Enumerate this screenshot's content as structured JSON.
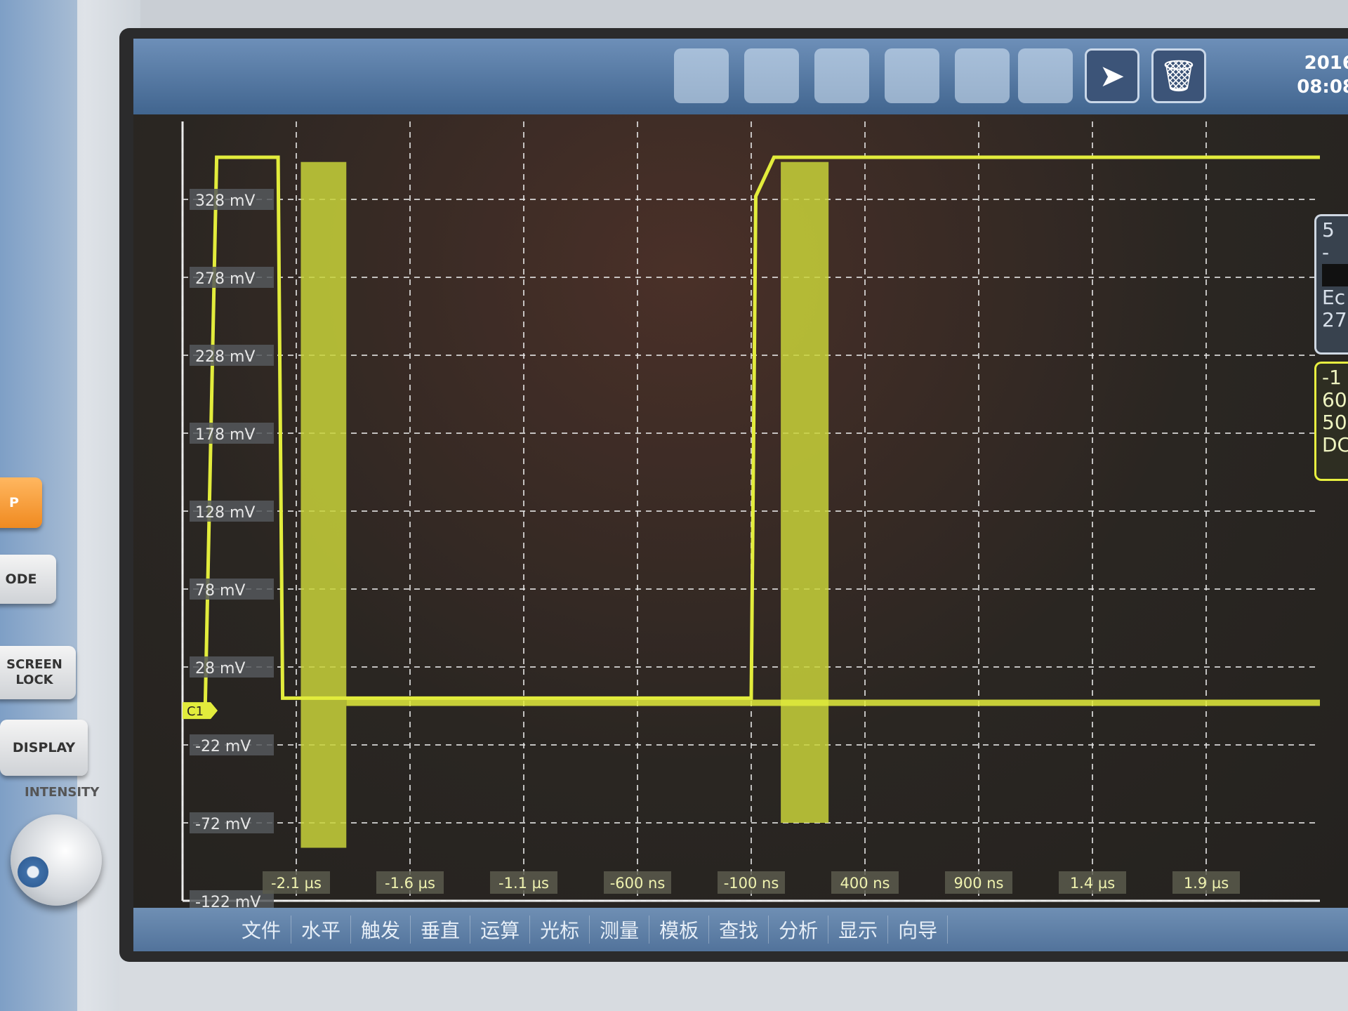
{
  "left_panel": {
    "buttons": [
      {
        "label": "P",
        "style": "orange"
      },
      {
        "label": "ODE"
      },
      {
        "label": "SCREEN LOCK"
      },
      {
        "label": "DISPLAY"
      }
    ],
    "intensity_label": "INTENSITY"
  },
  "toolbar": {
    "pointer_icon": "cursor-arrow-icon",
    "delete_icon": "trash-icon",
    "date": "2016",
    "time": "08:08"
  },
  "right_panels": {
    "top": [
      "5",
      "-",
      "",
      "Ec",
      "27"
    ],
    "channel": [
      "-1",
      "60",
      "50",
      "DC"
    ]
  },
  "menu": [
    "文件",
    "水平",
    "触发",
    "垂直",
    "运算",
    "光标",
    "测量",
    "模板",
    "查找",
    "分析",
    "显示",
    "向导"
  ],
  "colors": {
    "trace": "#e2ec3c",
    "grid": "#e8e8e8",
    "screen": "#2a2622",
    "toolbar": "#41658f"
  },
  "chart_data": {
    "type": "line",
    "title": "",
    "xlabel": "",
    "ylabel": "",
    "xlim": [
      -2.6,
      2.4
    ],
    "ylim": [
      -122,
      378
    ],
    "grid": true,
    "channel_marker": "C1",
    "x_ticks": [
      {
        "value": -2.1,
        "label": "-2.1 µs"
      },
      {
        "value": -1.6,
        "label": "-1.6 µs"
      },
      {
        "value": -1.1,
        "label": "-1.1 µs"
      },
      {
        "value": -0.6,
        "label": "-600 ns"
      },
      {
        "value": -0.1,
        "label": "-100 ns"
      },
      {
        "value": 0.4,
        "label": "400 ns"
      },
      {
        "value": 0.9,
        "label": "900 ns"
      },
      {
        "value": 1.4,
        "label": "1.4 µs"
      },
      {
        "value": 1.9,
        "label": "1.9 µs"
      }
    ],
    "y_ticks": [
      {
        "value": 328,
        "label": "328 mV"
      },
      {
        "value": 278,
        "label": "278 mV"
      },
      {
        "value": 228,
        "label": "228 mV"
      },
      {
        "value": 178,
        "label": "178 mV"
      },
      {
        "value": 128,
        "label": "128 mV"
      },
      {
        "value": 78,
        "label": "78 mV"
      },
      {
        "value": 28,
        "label": "28 mV"
      },
      {
        "value": -22,
        "label": "-22 mV"
      },
      {
        "value": -72,
        "label": "-72 mV"
      },
      {
        "value": -122,
        "label": "-122 mV"
      }
    ],
    "series": [
      {
        "x": [
          -2.5,
          -2.45,
          -2.18,
          -2.16,
          -0.1,
          -0.08,
          0.0,
          2.4
        ],
        "y": [
          5,
          355,
          355,
          8,
          8,
          330,
          355,
          355
        ]
      }
    ],
    "persistence_bands": [
      {
        "x_start": -2.08,
        "x_end": -1.88,
        "y_min": -88,
        "y_max": 352
      },
      {
        "x_start": 0.03,
        "x_end": 0.24,
        "y_min": -72,
        "y_max": 352
      }
    ],
    "baseline": {
      "x_start": -1.88,
      "x_end": 2.4,
      "y": 5
    }
  }
}
